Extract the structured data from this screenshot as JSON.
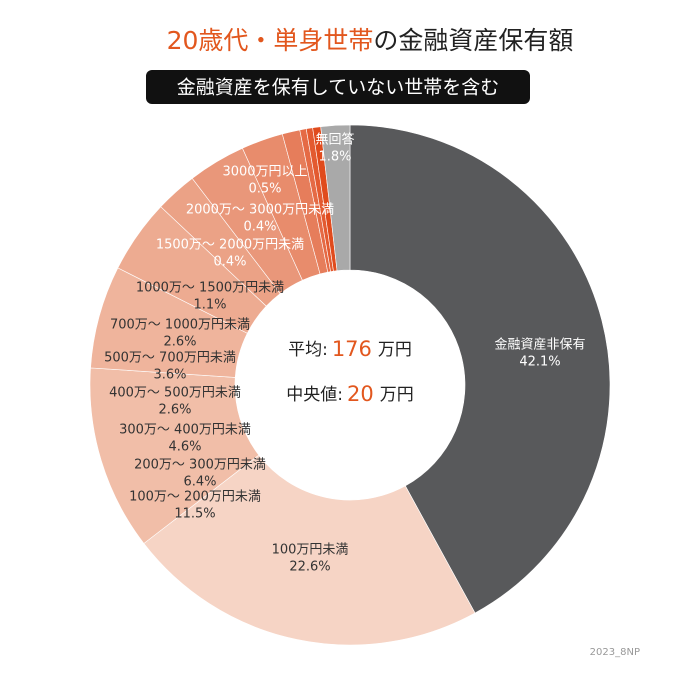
{
  "chart_data": {
    "type": "pie",
    "title_highlight": "20歳代・単身世帯",
    "title_rest": "の金融資産保有額",
    "subtitle": "金融資産を保有していない世帯を含む",
    "categories": [
      "金融資産非保有",
      "100万円未満",
      "100万～ 200万円未満",
      "200万～ 300万円未満",
      "300万～ 400万円未満",
      "400万～ 500万円未満",
      "500万～ 700万円未満",
      "700万～ 1000万円未満",
      "1000万～ 1500万円未満",
      "1500万～ 2000万円未満",
      "2000万～ 3000万円未満",
      "3000万円以上",
      "無回答"
    ],
    "values": [
      42.1,
      22.6,
      11.5,
      6.4,
      4.6,
      2.6,
      3.6,
      2.6,
      1.1,
      0.4,
      0.4,
      0.5,
      1.8
    ],
    "value_labels": [
      "42.1%",
      "22.6%",
      "11.5%",
      "6.4%",
      "4.6%",
      "2.6%",
      "3.6%",
      "2.6%",
      "1.1%",
      "0.4%",
      "0.4%",
      "0.5%",
      "1.8%"
    ],
    "colors": [
      "#58595b",
      "#f6d4c5",
      "#f1bea8",
      "#efb49c",
      "#edab91",
      "#eba286",
      "#e9977a",
      "#e88c6c",
      "#e67d5b",
      "#e56a45",
      "#e35a30",
      "#e04b1d",
      "#a9a9a9"
    ],
    "annotations": [
      {
        "label": "平均:",
        "value": 176,
        "unit": "万円"
      },
      {
        "label": "中央値:",
        "value": 20,
        "unit": "万円"
      }
    ],
    "source": "2023_8NP"
  }
}
